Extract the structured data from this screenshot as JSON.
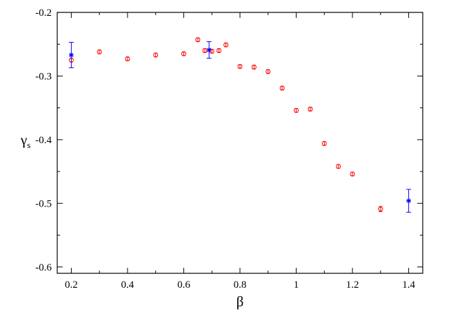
{
  "chart_data": {
    "type": "scatter",
    "title": "",
    "xlabel": "β",
    "ylabel": {
      "main": "γ",
      "sub": "s"
    },
    "xlim": [
      0.15,
      1.45
    ],
    "ylim": [
      -0.61,
      -0.2
    ],
    "x_ticks": [
      0.2,
      0.4,
      0.6,
      0.8,
      1.0,
      1.2,
      1.4
    ],
    "x_tick_labels": [
      "0.2",
      "0.4",
      "0.6",
      "0.8",
      "1",
      "1.2",
      "1.4"
    ],
    "y_ticks": [
      -0.2,
      -0.3,
      -0.4,
      -0.5,
      -0.6
    ],
    "y_tick_labels": [
      "-0.2",
      "-0.3",
      "-0.4",
      "-0.5",
      "-0.6"
    ],
    "grid": false,
    "legend": "none",
    "series": [
      {
        "marker": "circle",
        "color": "#ff0000",
        "points": [
          {
            "x": 0.2,
            "y": -0.275,
            "err": 0.003
          },
          {
            "x": 0.3,
            "y": -0.262,
            "err": 0.003
          },
          {
            "x": 0.4,
            "y": -0.273,
            "err": 0.003
          },
          {
            "x": 0.5,
            "y": -0.267,
            "err": 0.003
          },
          {
            "x": 0.6,
            "y": -0.265,
            "err": 0.003
          },
          {
            "x": 0.65,
            "y": -0.243,
            "err": 0.003
          },
          {
            "x": 0.675,
            "y": -0.26,
            "err": 0.003
          },
          {
            "x": 0.7,
            "y": -0.261,
            "err": 0.003
          },
          {
            "x": 0.725,
            "y": -0.26,
            "err": 0.003
          },
          {
            "x": 0.75,
            "y": -0.251,
            "err": 0.003
          },
          {
            "x": 0.8,
            "y": -0.285,
            "err": 0.003
          },
          {
            "x": 0.85,
            "y": -0.286,
            "err": 0.003
          },
          {
            "x": 0.9,
            "y": -0.293,
            "err": 0.003
          },
          {
            "x": 0.95,
            "y": -0.319,
            "err": 0.003
          },
          {
            "x": 1.0,
            "y": -0.354,
            "err": 0.003
          },
          {
            "x": 1.05,
            "y": -0.352,
            "err": 0.003
          },
          {
            "x": 1.1,
            "y": -0.406,
            "err": 0.003
          },
          {
            "x": 1.15,
            "y": -0.442,
            "err": 0.003
          },
          {
            "x": 1.2,
            "y": -0.454,
            "err": 0.003
          },
          {
            "x": 1.3,
            "y": -0.509,
            "err": 0.004
          }
        ]
      },
      {
        "marker": "asterisk",
        "color": "#0000ff",
        "points": [
          {
            "x": 0.2,
            "y": -0.267,
            "err": 0.02
          },
          {
            "x": 0.69,
            "y": -0.259,
            "err": 0.013
          },
          {
            "x": 1.4,
            "y": -0.496,
            "err": 0.018
          }
        ]
      }
    ]
  }
}
